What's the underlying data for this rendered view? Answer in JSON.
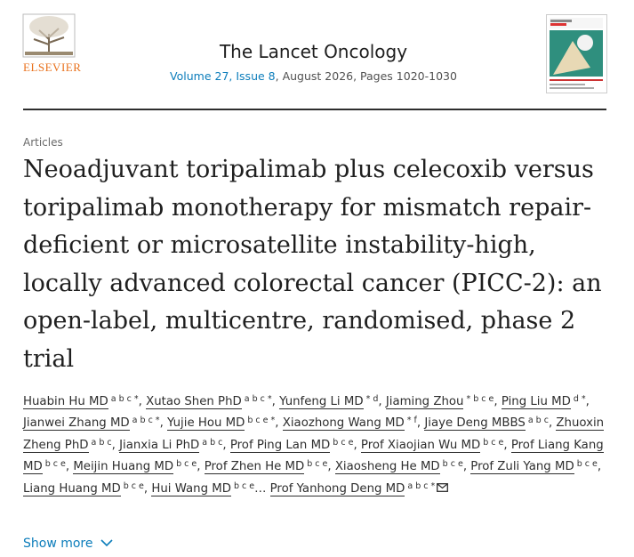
{
  "publisher": "ELSEVIER",
  "journal": {
    "title": "The Lancet Oncology",
    "volume_issue": "Volume 27, Issue 8",
    "details": ", August 2026, Pages 1020-1030"
  },
  "article": {
    "type": "Articles",
    "title": "Neoadjuvant toripalimab plus celecoxib versus toripalimab monotherapy for mismatch repair-deficient or microsatellite instability-high, locally advanced colorectal cancer (PICC-2): an open-label, multicentre, randomised, phase 2 trial"
  },
  "separator": ",",
  "authors": [
    {
      "name": "Huabin Hu MD",
      "sup": "a b c *"
    },
    {
      "name": "Xutao Shen PhD",
      "sup": "a b c *"
    },
    {
      "name": "Yunfeng Li MD",
      "sup": "* d"
    },
    {
      "name": "Jiaming Zhou",
      "sup": "* b c e"
    },
    {
      "name": "Ping Liu MD",
      "sup": "d *"
    },
    {
      "name": "Jianwei Zhang MD",
      "sup": "a b c *"
    },
    {
      "name": "Yujie Hou MD",
      "sup": "b c e *"
    },
    {
      "name": "Xiaozhong Wang MD",
      "sup": "* f"
    },
    {
      "name": "Jiaye Deng MBBS",
      "sup": "a b c"
    },
    {
      "name": "Zhuoxin Zheng PhD",
      "sup": "a b c"
    },
    {
      "name": "Jianxia Li PhD",
      "sup": "a b c"
    },
    {
      "name": "Prof Ping Lan MD",
      "sup": "b c e"
    },
    {
      "name": "Prof Xiaojian Wu MD",
      "sup": "b c e"
    },
    {
      "name": "Prof Liang Kang MD",
      "sup": "b c e"
    },
    {
      "name": "Meijin Huang MD",
      "sup": "b c e"
    },
    {
      "name": "Prof Zhen He MD",
      "sup": "b c e"
    },
    {
      "name": "Xiaosheng He MD",
      "sup": "b c e"
    },
    {
      "name": "Prof Zuli Yang MD",
      "sup": "b c e"
    },
    {
      "name": "Liang Huang MD",
      "sup": "b c e"
    },
    {
      "name": "Hui Wang MD",
      "sup": "b c e",
      "suffix": "…"
    },
    {
      "name": "Prof Yanhong Deng MD",
      "sup": "a b c *"
    }
  ],
  "show_more": "Show more"
}
